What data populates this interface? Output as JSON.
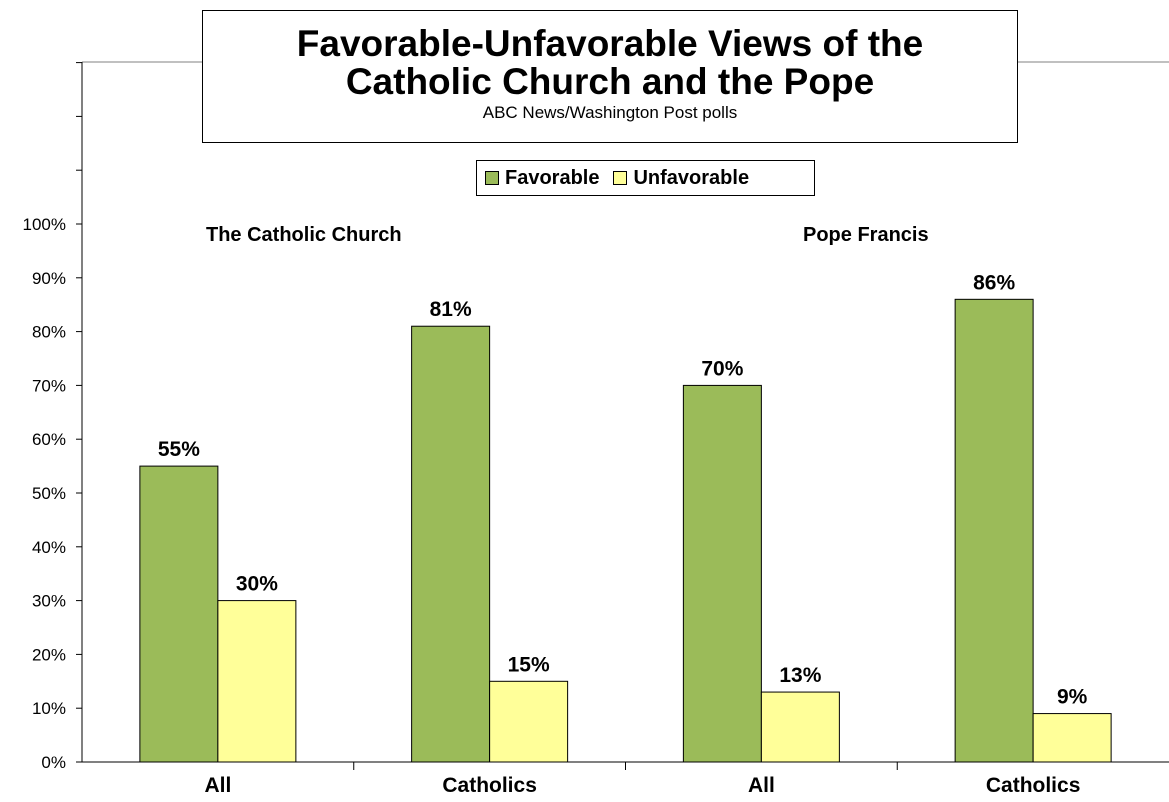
{
  "title": {
    "line1": "Favorable-Unfavorable Views of the",
    "line2": "Catholic Church and the Pope",
    "subtitle": "ABC News/Washington  Post polls"
  },
  "legend": {
    "favorable": "Favorable",
    "unfavorable": "Unfavorable"
  },
  "panels": {
    "church": "The Catholic Church",
    "pope": "Pope Francis"
  },
  "colors": {
    "favorable": "#9bbb59",
    "unfavorable": "#ffff99"
  },
  "chart_data": {
    "type": "bar",
    "categories": [
      "All",
      "Catholics",
      "All",
      "Catholics"
    ],
    "groups": [
      "The Catholic Church",
      "The Catholic Church",
      "Pope Francis",
      "Pope Francis"
    ],
    "series": [
      {
        "name": "Favorable",
        "values": [
          55,
          81,
          70,
          86
        ]
      },
      {
        "name": "Unfavorable",
        "values": [
          30,
          15,
          13,
          9
        ]
      }
    ],
    "data_labels": [
      [
        "55%",
        "81%",
        "70%",
        "86%"
      ],
      [
        "30%",
        "15%",
        "13%",
        "9%"
      ]
    ],
    "yticks": [
      "0%",
      "10%",
      "20%",
      "30%",
      "40%",
      "50%",
      "60%",
      "70%",
      "80%",
      "90%",
      "100%"
    ],
    "ylim": [
      0,
      100
    ],
    "grid": false,
    "legend_position": "top-center"
  }
}
